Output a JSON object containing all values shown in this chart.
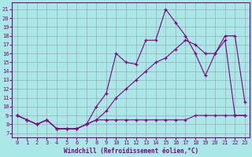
{
  "bg_color": "#aae8e8",
  "line_color": "#800080",
  "grid_color": "#9999aa",
  "xlabel": "Windchill (Refroidissement éolien,°C)",
  "x_ticks": [
    0,
    1,
    2,
    3,
    4,
    5,
    6,
    7,
    8,
    9,
    10,
    11,
    12,
    13,
    14,
    15,
    16,
    17,
    18,
    19,
    20,
    21,
    22,
    23
  ],
  "y_ticks": [
    7,
    8,
    9,
    10,
    11,
    12,
    13,
    14,
    15,
    16,
    17,
    18,
    19,
    20,
    21
  ],
  "ylim": [
    6.5,
    21.8
  ],
  "xlim": [
    -0.5,
    23.5
  ],
  "line1_x": [
    0,
    1,
    2,
    3,
    4,
    5,
    6,
    7,
    8,
    9,
    10,
    11,
    12,
    13,
    14,
    15,
    16,
    17,
    18,
    19,
    20,
    21,
    22,
    23
  ],
  "line1_y": [
    9.0,
    8.5,
    8.0,
    8.5,
    7.5,
    7.5,
    7.5,
    8.0,
    10.0,
    11.5,
    16.0,
    15.0,
    14.8,
    17.5,
    17.5,
    21.0,
    19.5,
    18.0,
    16.0,
    13.5,
    16.0,
    18.0,
    18.0,
    10.5
  ],
  "line2_x": [
    0,
    1,
    2,
    3,
    4,
    5,
    6,
    7,
    8,
    9,
    10,
    11,
    12,
    13,
    14,
    15,
    16,
    17,
    18,
    19,
    20,
    21,
    22,
    23
  ],
  "line2_y": [
    9.0,
    8.5,
    8.0,
    8.5,
    7.5,
    7.5,
    7.5,
    8.0,
    8.5,
    8.5,
    8.5,
    8.5,
    8.5,
    8.5,
    8.5,
    8.5,
    8.5,
    8.5,
    9.0,
    9.0,
    9.0,
    9.0,
    9.0,
    9.0
  ],
  "line3_x": [
    0,
    1,
    2,
    3,
    4,
    5,
    6,
    7,
    8,
    9,
    10,
    11,
    12,
    13,
    14,
    15,
    16,
    17,
    18,
    19,
    20,
    21,
    22,
    23
  ],
  "line3_y": [
    9.0,
    8.5,
    8.0,
    8.5,
    7.5,
    7.5,
    7.5,
    8.0,
    8.5,
    9.5,
    11.0,
    12.0,
    13.0,
    14.0,
    15.0,
    15.5,
    16.5,
    17.5,
    17.0,
    16.0,
    16.0,
    17.5,
    9.0,
    9.0
  ]
}
